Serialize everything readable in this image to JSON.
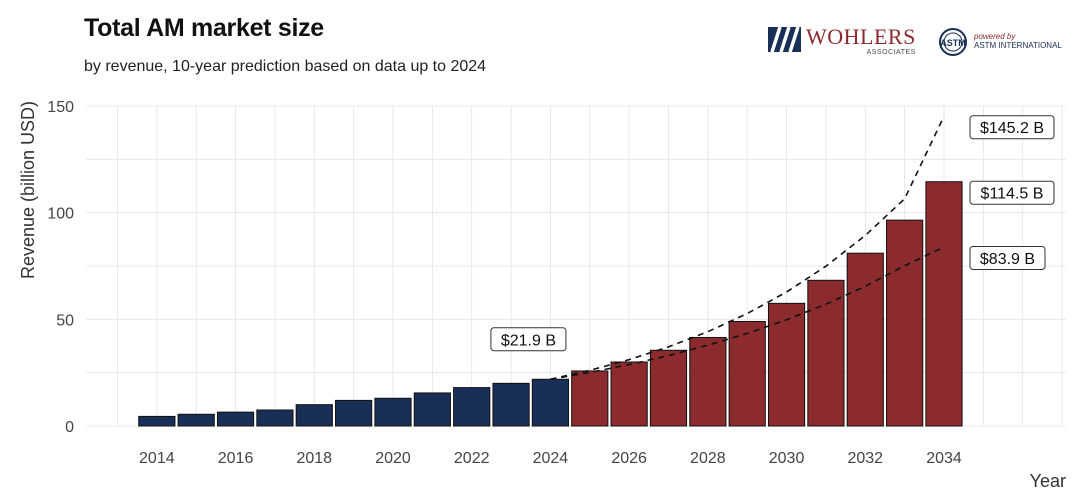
{
  "header": {
    "title": "Total AM market size",
    "subtitle": "by revenue, 10-year prediction based on data up to 2024"
  },
  "logos": {
    "wohlers": {
      "name": "WOHLERS",
      "sub": "ASSOCIATES",
      "icon": "wohlers-stripes-icon"
    },
    "astm": {
      "powered": "powered by",
      "org": "ASTM INTERNATIONAL",
      "icon": "astm-seal-icon"
    }
  },
  "colors": {
    "historical": "#1a2f57",
    "forecast": "#8b2b2e",
    "grid": "#e3e3e3"
  },
  "chart_data": {
    "type": "bar",
    "xlabel": "Year",
    "ylabel": "Revenue (billion USD)",
    "ylim": [
      0,
      150
    ],
    "yticks": [
      0,
      50,
      100,
      150
    ],
    "xticks": [
      2014,
      2016,
      2018,
      2020,
      2022,
      2024,
      2026,
      2028,
      2030,
      2032,
      2034
    ],
    "xlim": [
      2012.2,
      2037.1
    ],
    "grid": true,
    "series": [
      {
        "kind": "historical",
        "x": [
          2014,
          2015,
          2016,
          2017,
          2018,
          2019,
          2020,
          2021,
          2022,
          2023,
          2024
        ],
        "values": [
          4.5,
          5.5,
          6.5,
          7.5,
          10,
          12,
          13,
          15.5,
          18,
          20,
          21.9
        ]
      },
      {
        "kind": "forecast",
        "x": [
          2025,
          2026,
          2027,
          2028,
          2029,
          2030,
          2031,
          2032,
          2033,
          2034
        ],
        "values": [
          25.8,
          30,
          35.5,
          41.5,
          49,
          57.5,
          68.3,
          81,
          96.5,
          114.5
        ]
      }
    ],
    "dashed_lines": [
      {
        "kind": "high",
        "x": [
          2024,
          2025,
          2026,
          2027,
          2028,
          2029,
          2030,
          2031,
          2032,
          2033,
          2034
        ],
        "values": [
          21.9,
          26.1,
          31.1,
          37.1,
          44.2,
          52.7,
          62.8,
          74.9,
          89.3,
          106.5,
          145.2
        ]
      },
      {
        "kind": "low",
        "x": [
          2024,
          2025,
          2026,
          2027,
          2028,
          2029,
          2030,
          2031,
          2032,
          2033,
          2034
        ],
        "values": [
          21.9,
          25.1,
          28.8,
          33.0,
          37.9,
          43.4,
          49.8,
          57.1,
          65.5,
          75.1,
          83.9
        ]
      }
    ],
    "annotations": [
      {
        "text": "$21.9 B",
        "x": 2024,
        "y": 21.9
      },
      {
        "text": "$145.2 B",
        "x": 2034,
        "y": 145.2
      },
      {
        "text": "$114.5 B",
        "x": 2034,
        "y": 114.5
      },
      {
        "text": "$83.9 B",
        "x": 2034,
        "y": 83.9
      }
    ]
  }
}
